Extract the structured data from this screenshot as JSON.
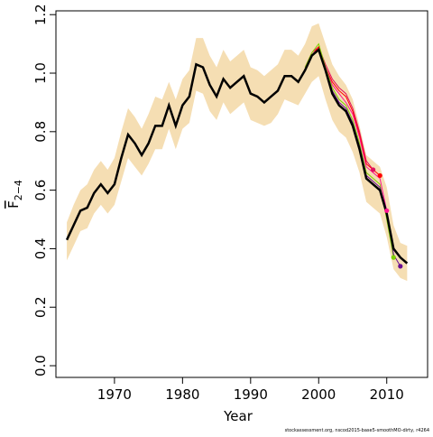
{
  "chart_data": {
    "type": "line",
    "xlabel": "Year",
    "ylabel": "F",
    "ylabel_sub": "2−4",
    "footnote": "stockassessment.org, nscod2015-base5-smoothMO-dirty, r4264",
    "xlim": [
      1961.4,
      2016
    ],
    "ylim": [
      -0.04,
      1.213
    ],
    "xticks": [
      1970,
      1980,
      1990,
      2000,
      2010
    ],
    "yticks": [
      {
        "value": 0,
        "label": "0.0"
      },
      0.2,
      0.4,
      0.6,
      0.8,
      {
        "value": 1,
        "label": "1.0"
      },
      1.2
    ],
    "x": [
      1963,
      1964,
      1965,
      1966,
      1967,
      1968,
      1969,
      1970,
      1971,
      1972,
      1973,
      1974,
      1975,
      1976,
      1977,
      1978,
      1979,
      1980,
      1981,
      1982,
      1983,
      1984,
      1985,
      1986,
      1987,
      1988,
      1989,
      1990,
      1991,
      1992,
      1993,
      1994,
      1995,
      1996,
      1997,
      1998,
      1999,
      2000,
      2001,
      2002,
      2003,
      2004,
      2005,
      2006,
      2007,
      2008,
      2009,
      2010,
      2011,
      2012,
      2013
    ],
    "band": {
      "color": "#f5deb3",
      "lower": [
        0.36,
        0.41,
        0.46,
        0.47,
        0.52,
        0.55,
        0.52,
        0.55,
        0.63,
        0.71,
        0.68,
        0.65,
        0.69,
        0.74,
        0.74,
        0.81,
        0.74,
        0.81,
        0.83,
        0.94,
        0.93,
        0.87,
        0.84,
        0.9,
        0.86,
        0.88,
        0.9,
        0.84,
        0.83,
        0.82,
        0.83,
        0.86,
        0.91,
        0.9,
        0.89,
        0.93,
        0.97,
        0.99,
        0.91,
        0.84,
        0.8,
        0.78,
        0.73,
        0.66,
        0.56,
        0.54,
        0.52,
        0.44,
        0.33,
        0.3,
        0.29
      ],
      "upper": [
        0.49,
        0.55,
        0.6,
        0.62,
        0.67,
        0.7,
        0.67,
        0.71,
        0.8,
        0.88,
        0.85,
        0.81,
        0.86,
        0.92,
        0.91,
        0.97,
        0.91,
        0.98,
        1.01,
        1.12,
        1.12,
        1.06,
        1.02,
        1.08,
        1.04,
        1.06,
        1.08,
        1.02,
        1.01,
        0.99,
        1.01,
        1.03,
        1.08,
        1.08,
        1.06,
        1.1,
        1.16,
        1.17,
        1.1,
        1.03,
        0.99,
        0.96,
        0.91,
        0.82,
        0.72,
        0.7,
        0.68,
        0.61,
        0.48,
        0.42,
        0.41
      ]
    },
    "main": {
      "color": "#000000",
      "values": [
        0.43,
        0.48,
        0.53,
        0.54,
        0.59,
        0.62,
        0.59,
        0.62,
        0.71,
        0.79,
        0.76,
        0.72,
        0.76,
        0.82,
        0.82,
        0.89,
        0.82,
        0.89,
        0.92,
        1.03,
        1.02,
        0.96,
        0.92,
        0.98,
        0.95,
        0.97,
        0.99,
        0.93,
        0.92,
        0.9,
        0.92,
        0.94,
        0.99,
        0.99,
        0.97,
        1.01,
        1.06,
        1.08,
        1.01,
        0.93,
        0.89,
        0.87,
        0.82,
        0.74,
        0.64,
        0.62,
        0.6,
        0.52,
        0.4,
        0.37,
        0.35
      ]
    },
    "series": [
      {
        "color": "#e0115f",
        "x": [
          1998,
          1999,
          2000,
          2001,
          2002,
          2003,
          2004,
          2005,
          2006,
          2007,
          2008
        ],
        "values": [
          1.02,
          1.07,
          1.09,
          1.03,
          0.98,
          0.95,
          0.93,
          0.88,
          0.8,
          0.7,
          0.67
        ]
      },
      {
        "color": "#ff0000",
        "x": [
          1998,
          1999,
          2000,
          2001,
          2002,
          2003,
          2004,
          2005,
          2006,
          2007,
          2008,
          2009
        ],
        "values": [
          1.01,
          1.06,
          1.09,
          1.02,
          0.97,
          0.94,
          0.92,
          0.87,
          0.79,
          0.69,
          0.67,
          0.65
        ]
      },
      {
        "color": "#ff1493",
        "x": [
          1998,
          1999,
          2000,
          2001,
          2002,
          2003,
          2004,
          2005,
          2006,
          2007,
          2008,
          2009,
          2010
        ],
        "values": [
          1.01,
          1.06,
          1.08,
          1.02,
          0.96,
          0.93,
          0.9,
          0.86,
          0.78,
          0.68,
          0.66,
          0.64,
          0.53
        ]
      },
      {
        "color": "#7fd000",
        "x": [
          1998,
          1999,
          2000,
          2001,
          2002,
          2003,
          2004,
          2005,
          2006,
          2007,
          2008,
          2009,
          2010,
          2011
        ],
        "values": [
          1.02,
          1.07,
          1.1,
          1.02,
          0.95,
          0.91,
          0.89,
          0.84,
          0.76,
          0.66,
          0.64,
          0.62,
          0.5,
          0.37
        ]
      },
      {
        "color": "#6a0d91",
        "x": [
          1998,
          1999,
          2000,
          2001,
          2002,
          2003,
          2004,
          2005,
          2006,
          2007,
          2008,
          2009,
          2010,
          2011,
          2012
        ],
        "values": [
          1.01,
          1.06,
          1.08,
          1.01,
          0.94,
          0.9,
          0.88,
          0.83,
          0.75,
          0.65,
          0.63,
          0.61,
          0.53,
          0.38,
          0.34
        ]
      }
    ]
  }
}
